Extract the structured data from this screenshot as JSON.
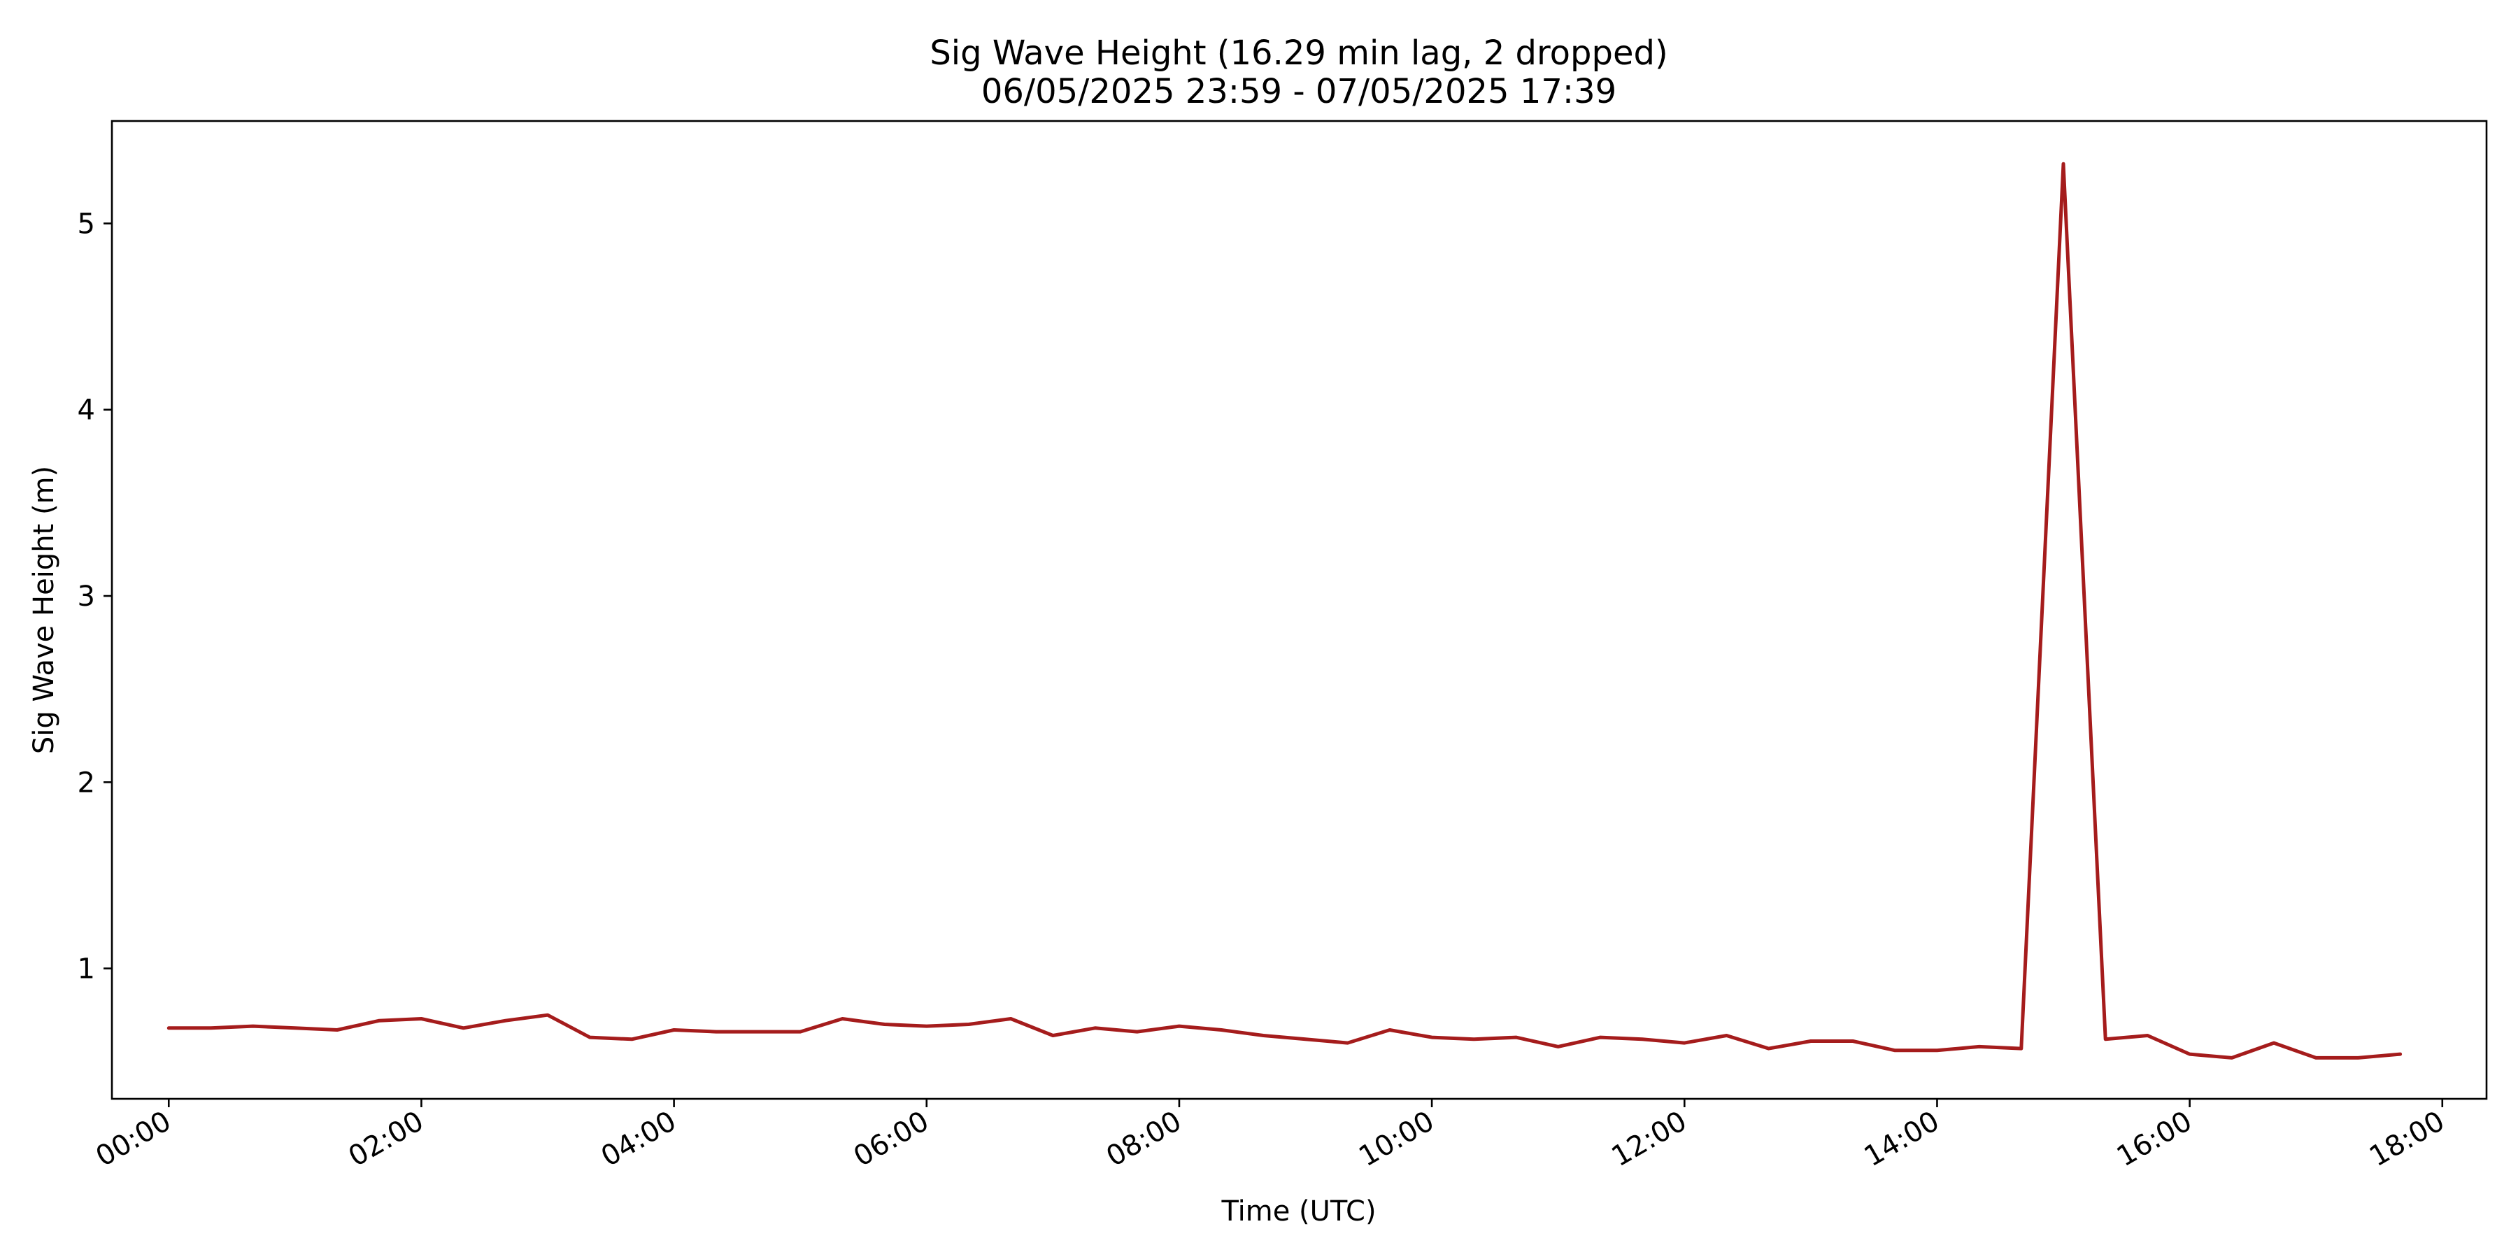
{
  "chart_data": {
    "type": "line",
    "title": "Sig Wave Height (16.29 min lag, 2 dropped)",
    "subtitle": "06/05/2025 23:59 - 07/05/2025 17:39",
    "xlabel": "Time (UTC)",
    "ylabel": "Sig Wave Height (m)",
    "grid": false,
    "legend": "none",
    "xlim": [
      "23:33",
      "18:21"
    ],
    "ylim": [
      0.3,
      5.55
    ],
    "xticks": [
      "00:00",
      "02:00",
      "04:00",
      "06:00",
      "08:00",
      "10:00",
      "12:00",
      "14:00",
      "16:00",
      "18:00"
    ],
    "yticks": [
      1,
      2,
      3,
      4,
      5
    ],
    "line_color": "#a51c1c",
    "series": [
      {
        "x": [
          "00:00",
          "00:20",
          "00:40",
          "01:00",
          "01:20",
          "01:40",
          "02:00",
          "02:20",
          "02:40",
          "03:00",
          "03:20",
          "03:40",
          "04:00",
          "04:20",
          "04:40",
          "05:00",
          "05:20",
          "05:40",
          "06:00",
          "06:20",
          "06:40",
          "07:00",
          "07:20",
          "07:40",
          "08:00",
          "08:20",
          "08:40",
          "09:00",
          "09:20",
          "09:40",
          "10:00",
          "10:20",
          "10:40",
          "11:00",
          "11:20",
          "11:40",
          "12:00",
          "12:20",
          "12:40",
          "13:00",
          "13:20",
          "13:40",
          "14:00",
          "14:20",
          "14:40",
          "15:00",
          "15:20",
          "15:40",
          "16:00",
          "16:20",
          "16:40",
          "17:00",
          "17:20",
          "17:40"
        ],
        "values": [
          0.68,
          0.68,
          0.69,
          0.68,
          0.67,
          0.72,
          0.73,
          0.68,
          0.72,
          0.75,
          0.63,
          0.62,
          0.67,
          0.66,
          0.66,
          0.66,
          0.73,
          0.7,
          0.69,
          0.7,
          0.73,
          0.64,
          0.68,
          0.66,
          0.69,
          0.67,
          0.64,
          0.62,
          0.6,
          0.67,
          0.63,
          0.62,
          0.63,
          0.58,
          0.63,
          0.62,
          0.6,
          0.64,
          0.57,
          0.61,
          0.61,
          0.56,
          0.56,
          0.58,
          0.57,
          5.32,
          0.62,
          0.64,
          0.54,
          0.52,
          0.6,
          0.52,
          0.52,
          0.54
        ]
      }
    ]
  }
}
